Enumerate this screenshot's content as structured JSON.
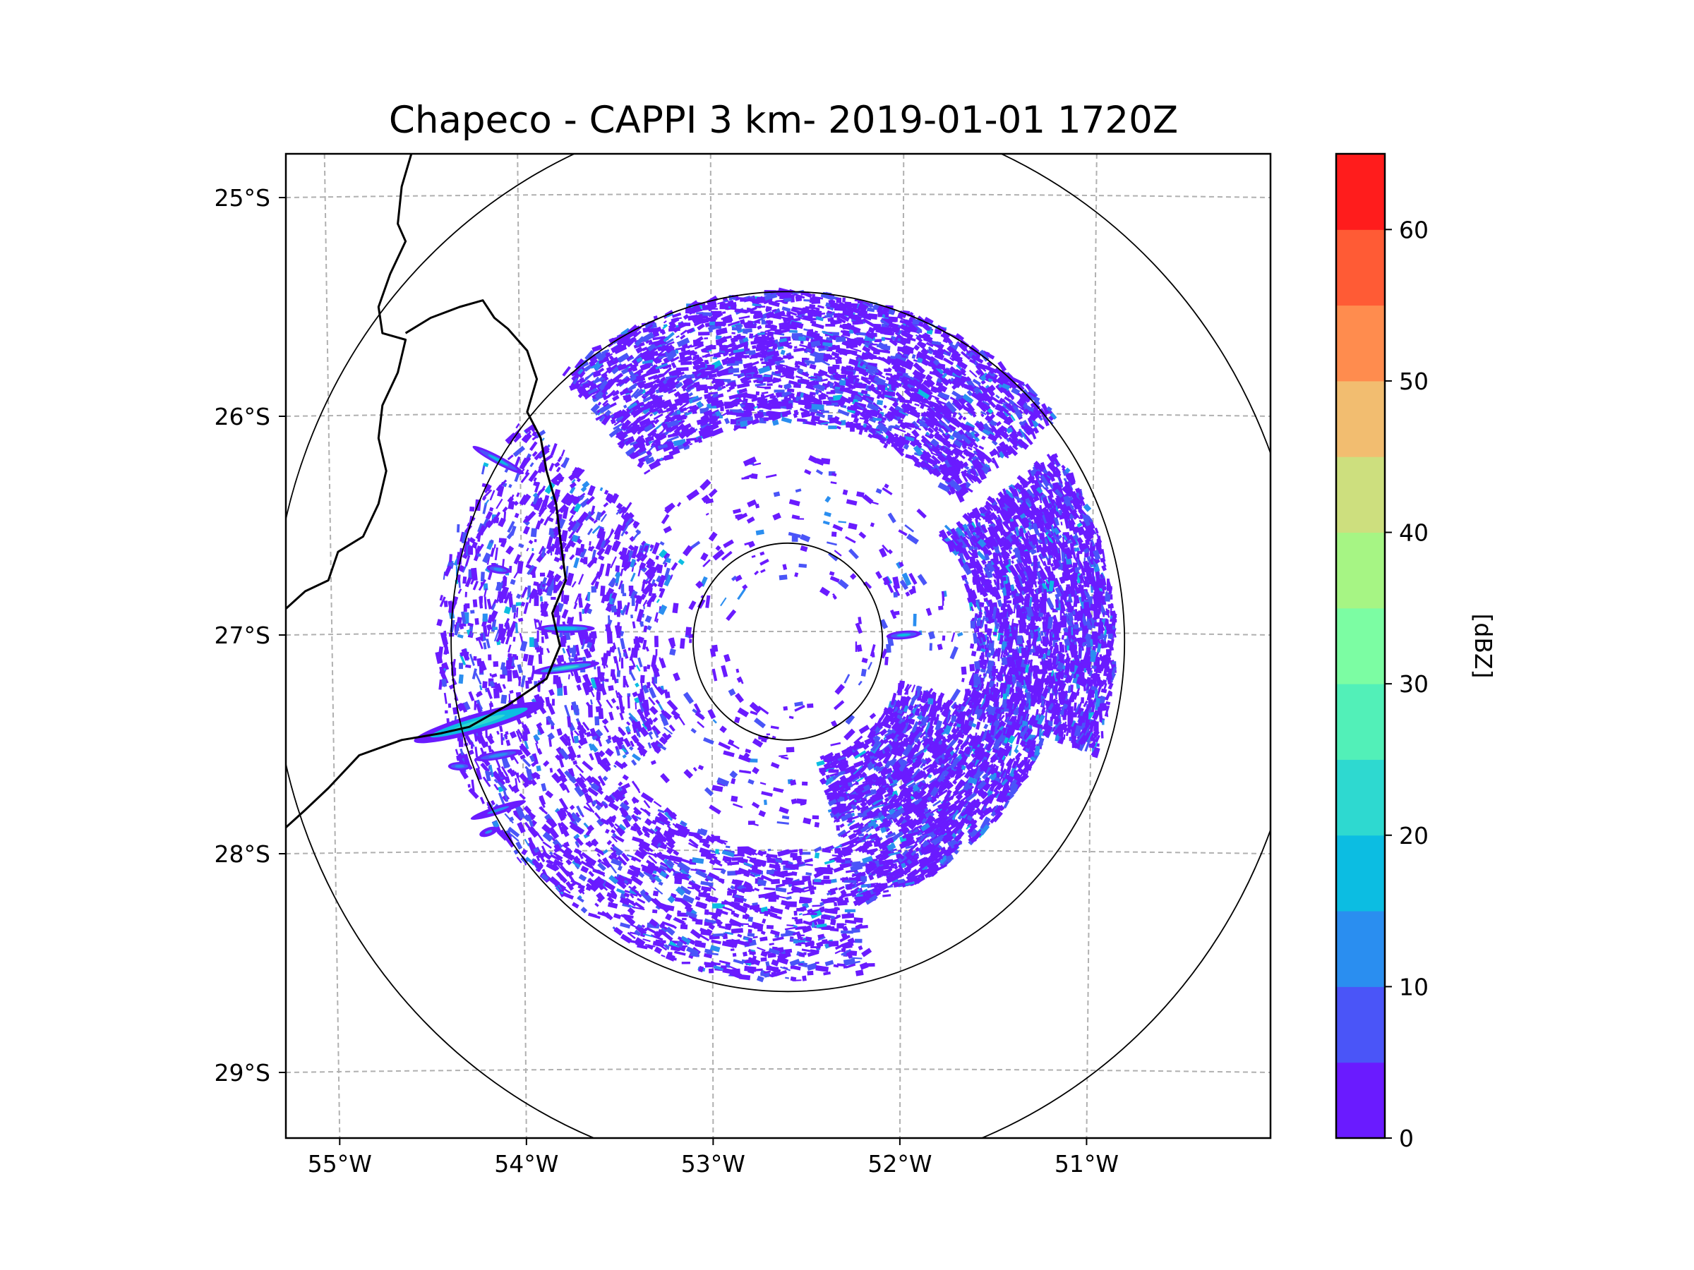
{
  "chart_data": {
    "type": "heatmap",
    "title": "Chapeco - CAPPI 3 km- 2019-01-01 1720Z",
    "xlabel": "",
    "ylabel": "",
    "x_ticks": [
      {
        "value": -55,
        "label": "55°W"
      },
      {
        "value": -54,
        "label": "54°W"
      },
      {
        "value": -53,
        "label": "53°W"
      },
      {
        "value": -52,
        "label": "52°W"
      },
      {
        "value": -51,
        "label": "51°W"
      }
    ],
    "y_ticks": [
      {
        "value": -25,
        "label": "25°S"
      },
      {
        "value": -26,
        "label": "26°S"
      },
      {
        "value": -27,
        "label": "27°S"
      },
      {
        "value": -28,
        "label": "28°S"
      },
      {
        "value": -29,
        "label": "29°S"
      }
    ],
    "xlim": [
      -55.2,
      -50.1
    ],
    "ylim": [
      -29.3,
      -24.8
    ],
    "grid": true,
    "radar": {
      "site_lon": -52.6,
      "site_lat": -27.03,
      "range_rings_deg": [
        0.45,
        1.6,
        2.45
      ]
    },
    "precip_regions": [
      {
        "name": "east-arc",
        "start_deg": -35,
        "end_deg": 20,
        "inner": 0.85,
        "outer": 1.5,
        "density": 0.85
      },
      {
        "name": "southeast-arc",
        "start_deg": 20,
        "end_deg": 75,
        "inner": 0.55,
        "outer": 1.25,
        "density": 0.8
      },
      {
        "name": "north-arc",
        "start_deg": -130,
        "end_deg": -40,
        "inner": 1.0,
        "outer": 1.6,
        "density": 0.6
      },
      {
        "name": "south-arc",
        "start_deg": 75,
        "end_deg": 140,
        "inner": 0.95,
        "outer": 1.55,
        "density": 0.35
      },
      {
        "name": "west-scatter",
        "start_deg": 140,
        "end_deg": 220,
        "inner": 0.6,
        "outer": 1.6,
        "density": 0.25
      },
      {
        "name": "inner-scatter",
        "start_deg": -180,
        "end_deg": 180,
        "inner": 0.25,
        "outer": 0.85,
        "density": 0.05
      }
    ],
    "colorbar": {
      "label": "[dBZ]",
      "min": 0,
      "max": 65,
      "step": 5,
      "ticks": [
        0,
        10,
        20,
        30,
        40,
        50,
        60
      ],
      "colors": [
        "#6a1bff",
        "#4a55f8",
        "#2a8ef0",
        "#0cbde2",
        "#2ed9d0",
        "#52f0b8",
        "#7cfda3",
        "#a6f584",
        "#cddf7e",
        "#f2bd70",
        "#ff8c4e",
        "#ff5b35",
        "#ff1c1c"
      ]
    },
    "storm_bands": [
      {
        "lon": -54.2,
        "lat": -27.4,
        "length_deg": 0.7,
        "angle_deg": -16,
        "peak_dbz": 22
      },
      {
        "lon": -53.75,
        "lat": -27.15,
        "length_deg": 0.35,
        "angle_deg": -8,
        "peak_dbz": 20
      },
      {
        "lon": -53.75,
        "lat": -26.97,
        "length_deg": 0.3,
        "angle_deg": 0,
        "peak_dbz": 18
      },
      {
        "lon": -54.1,
        "lat": -26.2,
        "length_deg": 0.3,
        "angle_deg": 28,
        "peak_dbz": 15
      },
      {
        "lon": -54.1,
        "lat": -27.55,
        "length_deg": 0.25,
        "angle_deg": -10,
        "peak_dbz": 12
      },
      {
        "lon": -54.3,
        "lat": -27.6,
        "length_deg": 0.12,
        "angle_deg": 0,
        "peak_dbz": 14
      },
      {
        "lon": -54.1,
        "lat": -27.8,
        "length_deg": 0.3,
        "angle_deg": -18,
        "peak_dbz": 10
      },
      {
        "lon": -54.15,
        "lat": -27.9,
        "length_deg": 0.1,
        "angle_deg": -20,
        "peak_dbz": 10
      },
      {
        "lon": -54.1,
        "lat": -26.7,
        "length_deg": 0.12,
        "angle_deg": 10,
        "peak_dbz": 12
      },
      {
        "lon": -52.0,
        "lat": -27.0,
        "length_deg": 0.18,
        "angle_deg": -5,
        "peak_dbz": 15
      }
    ],
    "borders": [
      {
        "name": "argentina-brazil-border",
        "points": [
          [
            -54.55,
            -24.8
          ],
          [
            -54.6,
            -24.95
          ],
          [
            -54.62,
            -25.12
          ],
          [
            -54.58,
            -25.2
          ],
          [
            -54.66,
            -25.35
          ],
          [
            -54.72,
            -25.5
          ],
          [
            -54.7,
            -25.62
          ],
          [
            -54.58,
            -25.65
          ],
          [
            -54.62,
            -25.8
          ],
          [
            -54.7,
            -25.95
          ],
          [
            -54.72,
            -26.1
          ],
          [
            -54.68,
            -26.25
          ],
          [
            -54.72,
            -26.4
          ],
          [
            -54.8,
            -26.55
          ],
          [
            -54.93,
            -26.62
          ],
          [
            -54.98,
            -26.75
          ],
          [
            -55.1,
            -26.8
          ],
          [
            -55.2,
            -26.88
          ]
        ]
      },
      {
        "name": "brazil-argentina-uruguay-river-border",
        "points": [
          [
            -54.58,
            -25.62
          ],
          [
            -54.45,
            -25.55
          ],
          [
            -54.3,
            -25.5
          ],
          [
            -54.18,
            -25.47
          ],
          [
            -54.12,
            -25.55
          ],
          [
            -54.05,
            -25.6
          ],
          [
            -53.95,
            -25.7
          ],
          [
            -53.9,
            -25.83
          ],
          [
            -53.95,
            -25.98
          ],
          [
            -53.88,
            -26.1
          ],
          [
            -53.85,
            -26.25
          ],
          [
            -53.8,
            -26.4
          ],
          [
            -53.78,
            -26.55
          ],
          [
            -53.75,
            -26.75
          ],
          [
            -53.82,
            -26.9
          ],
          [
            -53.78,
            -27.05
          ],
          [
            -53.85,
            -27.2
          ],
          [
            -54.05,
            -27.32
          ],
          [
            -54.25,
            -27.42
          ],
          [
            -54.4,
            -27.45
          ],
          [
            -54.6,
            -27.48
          ],
          [
            -54.82,
            -27.55
          ],
          [
            -54.98,
            -27.7
          ],
          [
            -55.1,
            -27.8
          ],
          [
            -55.2,
            -27.88
          ]
        ]
      }
    ]
  }
}
